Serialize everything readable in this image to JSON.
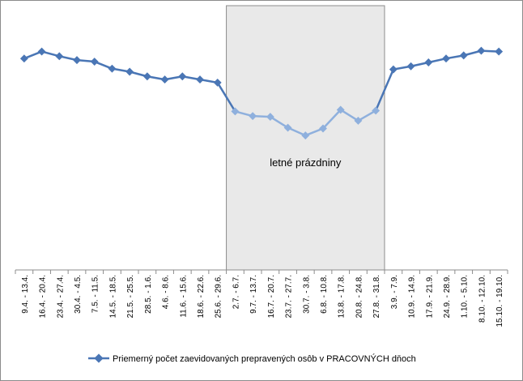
{
  "chart_data": {
    "type": "line",
    "categories": [
      "9.4. - 13.4.",
      "16.4. - 20.4.",
      "23.4. - 27.4.",
      "30.4. - 4.5.",
      "7.5. - 11.5.",
      "14.5. - 18.5.",
      "21.5. - 25.5.",
      "28.5. - 1.6.",
      "4.6. - 8.6.",
      "11.6. - 15.6.",
      "18.6. - 22.6.",
      "25.6. - 29.6.",
      "2.7. - 6.7.",
      "9.7. - 13.7.",
      "16.7. - 20.7.",
      "23.7. - 27.7.",
      "30.7. - 3.8.",
      "6.8. - 10.8.",
      "13.8. - 17.8.",
      "20.8. - 24.8.",
      "27.8. - 31.8.",
      "3.9. - 7.9.",
      "10.9. - 14.9.",
      "17.9. - 21.9.",
      "24.9. - 28.9.",
      "1.10. - 5.10.",
      "8.10. - 12.10.",
      "15.10. - 19.10."
    ],
    "series": [
      {
        "name": "Priemerný počet zaevidovaných prepravených osôb v PRACOVNÝCH dňoch",
        "values": [
          272,
          281,
          275,
          270,
          268,
          259,
          255,
          249,
          245,
          249,
          245,
          241,
          204,
          198,
          197,
          183,
          173,
          182,
          206,
          192,
          205,
          258,
          262,
          267,
          272,
          276,
          282,
          281
        ],
        "color": "#4a76b5"
      }
    ],
    "highlight": {
      "label": "letné prázdniny",
      "from_category": "2.7. - 6.7.",
      "to_category": "27.8. - 31.8.",
      "fill": "#e9e9e9",
      "line_color": "#8fb0dd"
    },
    "ylim": [
      0,
      340
    ],
    "grid": false,
    "legend_position": "bottom"
  }
}
